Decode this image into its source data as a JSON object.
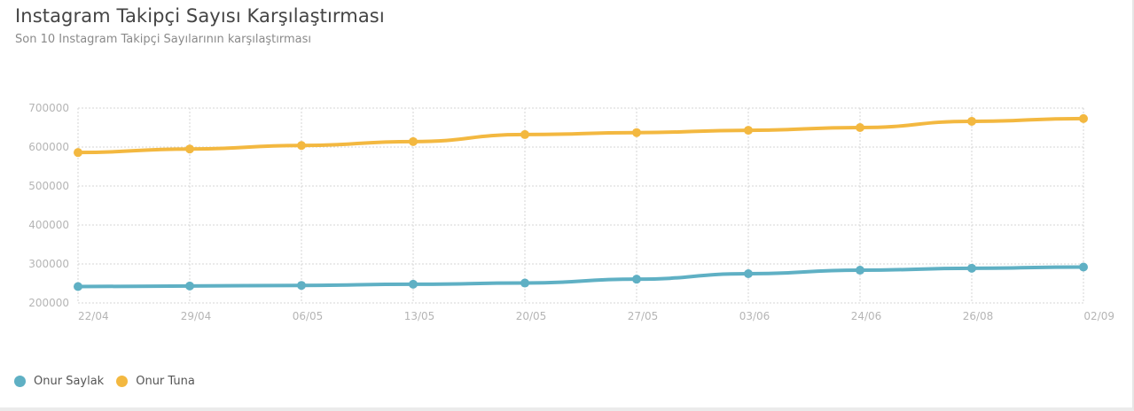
{
  "header": {
    "title": "Instagram Takipçi Sayısı Karşılaştırması",
    "subtitle": "Son 10 Instagram Takipçi Sayılarının karşılaştırması"
  },
  "chart_data": {
    "type": "line",
    "title": "Instagram Takipçi Sayısı Karşılaştırması",
    "subtitle": "Son 10 Instagram Takipçi Sayılarının karşılaştırması",
    "xlabel": "",
    "ylabel": "",
    "categories": [
      "22/04",
      "29/04",
      "06/05",
      "13/05",
      "20/05",
      "27/05",
      "03/06",
      "24/06",
      "26/08",
      "02/09"
    ],
    "y_ticks": [
      "700000",
      "600000",
      "500000",
      "400000",
      "300000",
      "200000"
    ],
    "ylim": [
      200000,
      700000
    ],
    "grid": true,
    "legend_position": "bottom-left",
    "series": [
      {
        "name": "Onur Saylak",
        "color": "#5fb0c4",
        "values": [
          242000,
          243500,
          245000,
          248000,
          251000,
          261000,
          275000,
          284000,
          289000,
          292000
        ]
      },
      {
        "name": "Onur Tuna",
        "color": "#f3b840",
        "values": [
          586000,
          595000,
          604000,
          614000,
          632000,
          637000,
          643000,
          650000,
          666000,
          673000
        ]
      }
    ]
  },
  "legend": {
    "items": [
      {
        "label": "Onur Saylak",
        "color": "#5fb0c4"
      },
      {
        "label": "Onur Tuna",
        "color": "#f3b840"
      }
    ]
  }
}
